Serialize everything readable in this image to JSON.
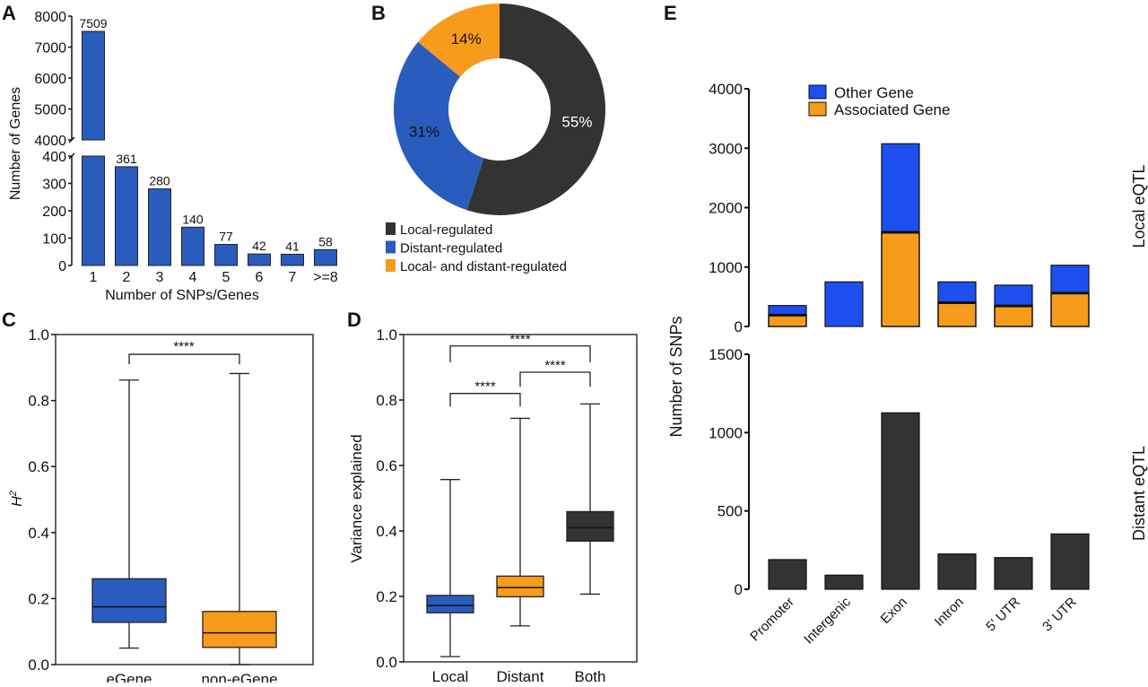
{
  "panel_letters": [
    "A",
    "B",
    "C",
    "D",
    "E"
  ],
  "colors": {
    "blue": "#2a5cbe",
    "orange": "#f79b1c",
    "dark": "#333333",
    "bright_blue": "#1d4ff0"
  },
  "chart_data": [
    {
      "panel": "A",
      "type": "bar",
      "xlabel": "Number of SNPs/Genes",
      "ylabel": "Number of Genes",
      "categories": [
        "1",
        "2",
        "3",
        "4",
        "5",
        "6",
        "7",
        ">=8"
      ],
      "values": [
        7509,
        361,
        280,
        140,
        77,
        42,
        41,
        58
      ],
      "data_labels": [
        "7509",
        "361",
        "280",
        "140",
        "77",
        "42",
        "41",
        "58"
      ],
      "broken_axis": {
        "lower_ylim": [
          0,
          400
        ],
        "upper_ylim": [
          4000,
          8000
        ]
      },
      "lower_ticks": [
        "0",
        "100",
        "200",
        "300",
        "400"
      ],
      "upper_ticks": [
        "4000",
        "5000",
        "6000",
        "7000",
        "8000"
      ],
      "color": "#2a5cbe"
    },
    {
      "panel": "B",
      "type": "pie",
      "donut": true,
      "slices": [
        {
          "name": "Local-regulated",
          "value": 55,
          "label": "55%",
          "color": "#333333"
        },
        {
          "name": "Distant-regulated",
          "value": 31,
          "label": "31%",
          "color": "#2a5cbe"
        },
        {
          "name": "Local- and distant-regulated",
          "value": 14,
          "label": "14%",
          "color": "#f79b1c"
        }
      ],
      "legend_placement": "bottom"
    },
    {
      "panel": "C",
      "type": "box",
      "ylabel": "H",
      "ylabel_sup": "2",
      "ylim": [
        0,
        1.0
      ],
      "ticks": [
        "0.0",
        "0.2",
        "0.4",
        "0.6",
        "0.8",
        "1.0"
      ],
      "categories": [
        "eGene",
        "non-eGene"
      ],
      "boxes": [
        {
          "min": 0.05,
          "q1": 0.128,
          "median": 0.175,
          "q3": 0.26,
          "max": 0.862,
          "color": "#2a5cbe"
        },
        {
          "min": 0.0,
          "q1": 0.052,
          "median": 0.096,
          "q3": 0.161,
          "max": 0.882,
          "color": "#f79b1c"
        }
      ],
      "significance": [
        {
          "from": 0,
          "to": 1,
          "label": "****"
        }
      ]
    },
    {
      "panel": "D",
      "type": "box",
      "ylabel": "Variance explained",
      "ylim": [
        0,
        1.0
      ],
      "ticks": [
        "0.0",
        "0.2",
        "0.4",
        "0.6",
        "0.8",
        "1.0"
      ],
      "categories": [
        "Local",
        "Distant",
        "Both"
      ],
      "boxes": [
        {
          "min": 0.016,
          "q1": 0.15,
          "median": 0.172,
          "q3": 0.203,
          "max": 0.557,
          "color": "#2a5cbe"
        },
        {
          "min": 0.11,
          "q1": 0.199,
          "median": 0.227,
          "q3": 0.262,
          "max": 0.744,
          "color": "#f79b1c"
        },
        {
          "min": 0.207,
          "q1": 0.369,
          "median": 0.41,
          "q3": 0.459,
          "max": 0.788,
          "color": "#333333"
        }
      ],
      "significance": [
        {
          "from": 0,
          "to": 1,
          "label": "****"
        },
        {
          "from": 1,
          "to": 2,
          "label": "****"
        },
        {
          "from": 0,
          "to": 2,
          "label": "****"
        }
      ]
    },
    {
      "panel": "E",
      "type": "bar",
      "stacked": true,
      "ylabel": "Number of SNPs",
      "categories": [
        "Promoter",
        "Intergenic",
        "Exon",
        "Intron",
        "5' UTR",
        "3' UTR"
      ],
      "subplots": [
        {
          "title": "Local eQTL",
          "ylim": [
            0,
            4000
          ],
          "ticks": [
            "0",
            "1000",
            "2000",
            "3000",
            "4000"
          ],
          "series": [
            {
              "name": "Associated Gene",
              "values": [
                190,
                0,
                1585,
                400,
                345,
                563
              ],
              "color": "#f79b1c"
            },
            {
              "name": "Other Gene",
              "values": [
                162,
                750,
                1490,
                350,
                350,
                467
              ],
              "color": "#1d4ff0"
            }
          ],
          "legend_placement": "top-left"
        },
        {
          "title": "Distant eQTL",
          "ylim": [
            0,
            1500
          ],
          "ticks": [
            "0",
            "500",
            "1000",
            "1500"
          ],
          "series": [
            {
              "values": [
                189,
                90,
                1126,
                225,
                202,
                353
              ],
              "color": "#333333"
            }
          ]
        }
      ]
    }
  ]
}
